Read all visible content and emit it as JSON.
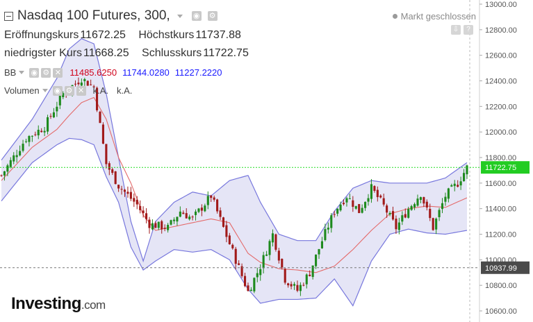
{
  "header": {
    "title": "Nasdaq 100 Futures, 300,",
    "status": "Markt geschlossen",
    "ohlc": [
      {
        "label": "Eröffnungskurs",
        "value": "11672.25"
      },
      {
        "label": "Höchstkurs",
        "value": "11737.88"
      },
      {
        "label": "niedrigster Kurs",
        "value": "11668.25"
      },
      {
        "label": "Schlusskurs",
        "value": "11722.75"
      }
    ],
    "indicators": [
      {
        "name": "BB",
        "values": [
          "11485.6250",
          "11744.0280",
          "11227.2220"
        ],
        "colors": [
          "#d0021b",
          "#1a1aff",
          "#1a1aff"
        ]
      },
      {
        "name": "Volumen",
        "values": [
          "k.A.",
          "k.A."
        ],
        "colors": [
          "#555555",
          "#555555"
        ]
      }
    ]
  },
  "logo": {
    "brand": "Investing",
    "suffix": ".com"
  },
  "colors": {
    "up": "#1e8a1e",
    "down": "#a11a1a",
    "band_line": "#7777dd",
    "band_fill": "#dcdcf3",
    "middle": "#e46a6a",
    "current_line": "#22dd22",
    "current_badge": "#22cc22",
    "crosshair_badge": "#4a4a4a"
  },
  "chart_data": {
    "type": "candlestick",
    "title": "Nasdaq 100 Futures, 300,",
    "ylim": [
      10580,
      13020
    ],
    "y_axis_ticks": [
      10600,
      10800,
      11000,
      11200,
      11400,
      11600,
      11800,
      12000,
      12200,
      12400,
      12600,
      12800,
      13000
    ],
    "y_tick_labels": [
      "10600.00",
      "10800.00",
      "11000.00",
      "11200.00",
      "11400.00",
      "11600.00",
      "11800.00",
      "12000.00",
      "12200.00",
      "12400.00",
      "12600.00",
      "12800.00",
      "13000.00"
    ],
    "current_price": 11722.75,
    "current_price_label": "11722.75",
    "crosshair_price": 10937.99,
    "crosshair_price_label": "10937.99",
    "close_path": [
      [
        0,
        11660
      ],
      [
        8,
        11950
      ],
      [
        14,
        12040
      ],
      [
        20,
        12300
      ],
      [
        26,
        12420
      ],
      [
        30,
        12350
      ],
      [
        34,
        11750
      ],
      [
        38,
        11580
      ],
      [
        44,
        11430
      ],
      [
        48,
        11280
      ],
      [
        54,
        11250
      ],
      [
        58,
        11380
      ],
      [
        62,
        11320
      ],
      [
        68,
        11500
      ],
      [
        72,
        11250
      ],
      [
        76,
        11000
      ],
      [
        80,
        10750
      ],
      [
        84,
        10950
      ],
      [
        88,
        11200
      ],
      [
        92,
        10850
      ],
      [
        96,
        10760
      ],
      [
        100,
        10900
      ],
      [
        104,
        11150
      ],
      [
        108,
        11380
      ],
      [
        112,
        11500
      ],
      [
        116,
        11380
      ],
      [
        120,
        11560
      ],
      [
        124,
        11420
      ],
      [
        128,
        11250
      ],
      [
        132,
        11400
      ],
      [
        136,
        11520
      ],
      [
        140,
        11250
      ],
      [
        144,
        11500
      ],
      [
        148,
        11600
      ],
      [
        151,
        11722
      ]
    ],
    "upper_band": [
      [
        0,
        11780
      ],
      [
        10,
        12100
      ],
      [
        18,
        12420
      ],
      [
        22,
        12650
      ],
      [
        26,
        12730
      ],
      [
        30,
        12690
      ],
      [
        34,
        12300
      ],
      [
        38,
        11800
      ],
      [
        42,
        11300
      ],
      [
        46,
        10990
      ],
      [
        50,
        11300
      ],
      [
        56,
        11450
      ],
      [
        62,
        11530
      ],
      [
        68,
        11500
      ],
      [
        74,
        11620
      ],
      [
        80,
        11660
      ],
      [
        84,
        11450
      ],
      [
        90,
        11200
      ],
      [
        96,
        11150
      ],
      [
        102,
        11150
      ],
      [
        108,
        11380
      ],
      [
        114,
        11560
      ],
      [
        120,
        11620
      ],
      [
        126,
        11600
      ],
      [
        132,
        11600
      ],
      [
        138,
        11600
      ],
      [
        144,
        11640
      ],
      [
        151,
        11760
      ]
    ],
    "lower_band": [
      [
        0,
        11460
      ],
      [
        10,
        11760
      ],
      [
        18,
        11900
      ],
      [
        22,
        11950
      ],
      [
        26,
        11940
      ],
      [
        30,
        11900
      ],
      [
        34,
        11650
      ],
      [
        38,
        11450
      ],
      [
        42,
        11100
      ],
      [
        46,
        10920
      ],
      [
        50,
        10990
      ],
      [
        56,
        11080
      ],
      [
        62,
        11060
      ],
      [
        68,
        11080
      ],
      [
        74,
        11000
      ],
      [
        80,
        10770
      ],
      [
        84,
        10660
      ],
      [
        90,
        10690
      ],
      [
        96,
        10690
      ],
      [
        102,
        10700
      ],
      [
        108,
        10850
      ],
      [
        114,
        10640
      ],
      [
        120,
        10990
      ],
      [
        126,
        11200
      ],
      [
        132,
        11240
      ],
      [
        138,
        11210
      ],
      [
        144,
        11200
      ],
      [
        151,
        11230
      ]
    ],
    "middle_band": [
      [
        0,
        11620
      ],
      [
        10,
        11880
      ],
      [
        18,
        12020
      ],
      [
        22,
        12130
      ],
      [
        26,
        12230
      ],
      [
        30,
        12270
      ],
      [
        34,
        12100
      ],
      [
        38,
        11800
      ],
      [
        42,
        11600
      ],
      [
        46,
        11350
      ],
      [
        50,
        11230
      ],
      [
        56,
        11260
      ],
      [
        62,
        11290
      ],
      [
        68,
        11320
      ],
      [
        74,
        11290
      ],
      [
        80,
        11050
      ],
      [
        84,
        10980
      ],
      [
        90,
        10930
      ],
      [
        96,
        10920
      ],
      [
        102,
        10900
      ],
      [
        108,
        10950
      ],
      [
        114,
        11080
      ],
      [
        120,
        11230
      ],
      [
        126,
        11360
      ],
      [
        132,
        11400
      ],
      [
        138,
        11420
      ],
      [
        144,
        11410
      ],
      [
        151,
        11485
      ]
    ],
    "n_candles": 152
  }
}
